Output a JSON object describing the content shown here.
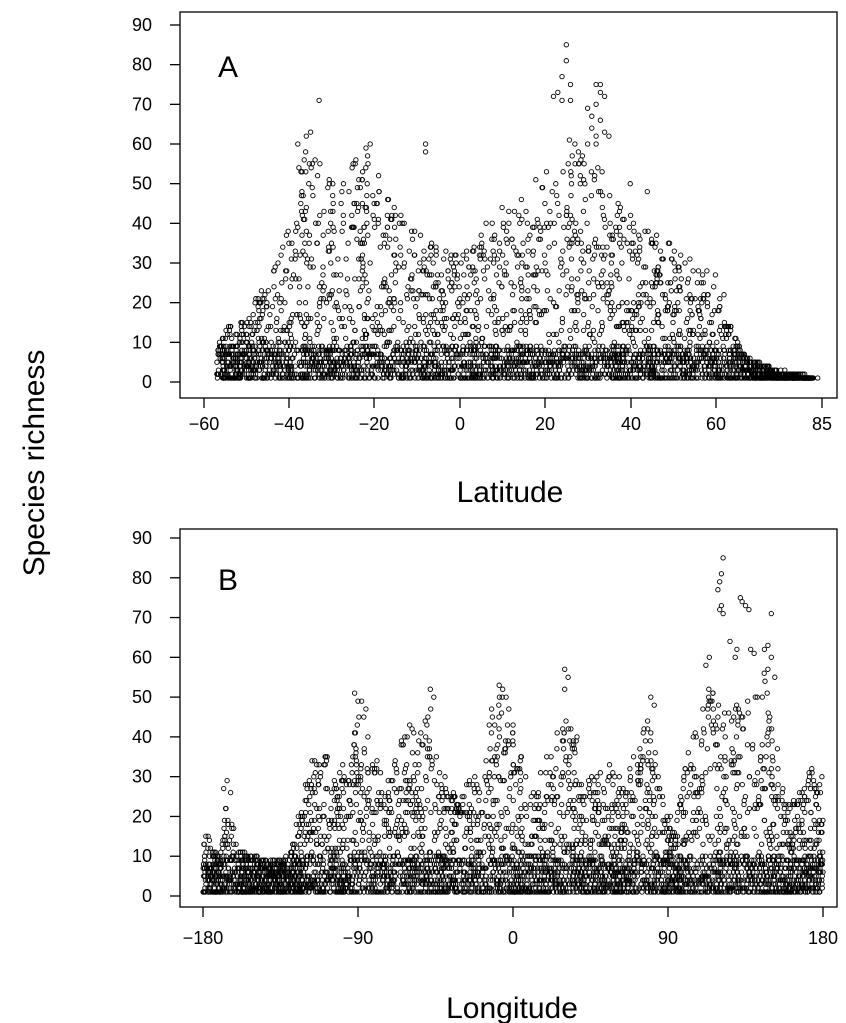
{
  "figure": {
    "shared_ylabel": "Species richness",
    "ylim": [
      0,
      90
    ],
    "yticks": [
      "0",
      "10",
      "20",
      "30",
      "40",
      "50",
      "60",
      "70",
      "80",
      "90"
    ]
  },
  "chart_data": [
    {
      "type": "scatter",
      "panel_label": "A",
      "xlabel": "Latitude",
      "ylabel": "Species richness",
      "xlim": [
        -60,
        85
      ],
      "ylim": [
        0,
        90
      ],
      "xticks": [
        -60,
        -40,
        -20,
        0,
        20,
        40,
        60,
        85
      ],
      "xtick_labels": [
        "−60",
        "−40",
        "−20",
        "0",
        "20",
        "40",
        "60",
        "85"
      ],
      "yticks": [
        0,
        10,
        20,
        30,
        40,
        50,
        60,
        70,
        80,
        90
      ],
      "grid": false,
      "envelope": [
        [
          -57,
          8
        ],
        [
          -55,
          14
        ],
        [
          -50,
          16
        ],
        [
          -48,
          22
        ],
        [
          -44,
          28
        ],
        [
          -42,
          35
        ],
        [
          -40,
          42
        ],
        [
          -38,
          54
        ],
        [
          -36,
          60
        ],
        [
          -34,
          58
        ],
        [
          -32,
          54
        ],
        [
          -30,
          50
        ],
        [
          -28,
          52
        ],
        [
          -26,
          56
        ],
        [
          -22,
          58
        ],
        [
          -20,
          56
        ],
        [
          -18,
          48
        ],
        [
          -15,
          44
        ],
        [
          -12,
          40
        ],
        [
          -10,
          38
        ],
        [
          -8,
          36
        ],
        [
          -4,
          34
        ],
        [
          0,
          32
        ],
        [
          4,
          34
        ],
        [
          6,
          42
        ],
        [
          8,
          46
        ],
        [
          12,
          44
        ],
        [
          16,
          48
        ],
        [
          18,
          52
        ],
        [
          22,
          54
        ],
        [
          26,
          62
        ],
        [
          28,
          58
        ],
        [
          30,
          56
        ],
        [
          34,
          54
        ],
        [
          36,
          48
        ],
        [
          40,
          44
        ],
        [
          44,
          38
        ],
        [
          48,
          36
        ],
        [
          52,
          32
        ],
        [
          56,
          28
        ],
        [
          60,
          26
        ],
        [
          62,
          18
        ],
        [
          64,
          14
        ],
        [
          66,
          8
        ],
        [
          70,
          5
        ],
        [
          74,
          3
        ],
        [
          80,
          2
        ],
        [
          83,
          1
        ]
      ],
      "points": [
        [
          -33,
          71
        ],
        [
          -35,
          63
        ],
        [
          -36,
          62
        ],
        [
          -38,
          60
        ],
        [
          -21,
          60
        ],
        [
          -22,
          59
        ],
        [
          -8,
          60
        ],
        [
          -8,
          58
        ],
        [
          25,
          85
        ],
        [
          25,
          81
        ],
        [
          24,
          77
        ],
        [
          26,
          75
        ],
        [
          23,
          73
        ],
        [
          22,
          72
        ],
        [
          24,
          71
        ],
        [
          26,
          71
        ],
        [
          32,
          75
        ],
        [
          33,
          75
        ],
        [
          33,
          73
        ],
        [
          34,
          72
        ],
        [
          32,
          70
        ],
        [
          30,
          69
        ],
        [
          31,
          67
        ],
        [
          33,
          66
        ],
        [
          31,
          64
        ],
        [
          34,
          63
        ],
        [
          32,
          62
        ],
        [
          35,
          62
        ],
        [
          30,
          60
        ],
        [
          32,
          60
        ],
        [
          28,
          55
        ],
        [
          40,
          50
        ],
        [
          44,
          48
        ],
        [
          54,
          31
        ],
        [
          58,
          28
        ],
        [
          60,
          27
        ],
        [
          62,
          22
        ],
        [
          61,
          19
        ],
        [
          78,
          1
        ],
        [
          81,
          1
        ],
        [
          84,
          1
        ]
      ]
    },
    {
      "type": "scatter",
      "panel_label": "B",
      "xlabel": "Longitude",
      "ylabel": "Species richness",
      "xlim": [
        -180,
        180
      ],
      "ylim": [
        0,
        90
      ],
      "xticks": [
        -180,
        -90,
        0,
        90,
        180
      ],
      "xtick_labels": [
        "−180",
        "−90",
        "0",
        "90",
        "180"
      ],
      "yticks": [
        0,
        10,
        20,
        30,
        40,
        50,
        60,
        70,
        80,
        90
      ],
      "grid": false,
      "envelope": [
        [
          -180,
          17
        ],
        [
          -176,
          14
        ],
        [
          -170,
          10
        ],
        [
          -166,
          26
        ],
        [
          -160,
          12
        ],
        [
          -150,
          10
        ],
        [
          -140,
          9
        ],
        [
          -130,
          10
        ],
        [
          -124,
          22
        ],
        [
          -118,
          32
        ],
        [
          -112,
          40
        ],
        [
          -108,
          38
        ],
        [
          -104,
          30
        ],
        [
          -98,
          34
        ],
        [
          -92,
          42
        ],
        [
          -88,
          50
        ],
        [
          -84,
          46
        ],
        [
          -78,
          34
        ],
        [
          -72,
          30
        ],
        [
          -66,
          38
        ],
        [
          -60,
          44
        ],
        [
          -54,
          42
        ],
        [
          -48,
          50
        ],
        [
          -42,
          32
        ],
        [
          -36,
          28
        ],
        [
          -30,
          26
        ],
        [
          -24,
          30
        ],
        [
          -20,
          32
        ],
        [
          -16,
          40
        ],
        [
          -12,
          48
        ],
        [
          -8,
          52
        ],
        [
          -4,
          50
        ],
        [
          0,
          44
        ],
        [
          4,
          36
        ],
        [
          8,
          32
        ],
        [
          14,
          30
        ],
        [
          20,
          36
        ],
        [
          26,
          42
        ],
        [
          30,
          52
        ],
        [
          34,
          46
        ],
        [
          40,
          36
        ],
        [
          46,
          30
        ],
        [
          52,
          32
        ],
        [
          58,
          34
        ],
        [
          64,
          28
        ],
        [
          70,
          36
        ],
        [
          76,
          44
        ],
        [
          80,
          48
        ],
        [
          84,
          34
        ],
        [
          88,
          24
        ],
        [
          94,
          18
        ],
        [
          100,
          34
        ],
        [
          106,
          44
        ],
        [
          110,
          56
        ],
        [
          114,
          54
        ],
        [
          118,
          50
        ],
        [
          122,
          46
        ],
        [
          128,
          48
        ],
        [
          134,
          52
        ],
        [
          138,
          50
        ],
        [
          142,
          52
        ],
        [
          146,
          58
        ],
        [
          150,
          44
        ],
        [
          154,
          36
        ],
        [
          158,
          24
        ],
        [
          164,
          24
        ],
        [
          168,
          28
        ],
        [
          172,
          32
        ],
        [
          176,
          34
        ],
        [
          180,
          34
        ]
      ],
      "points": [
        [
          -166,
          29
        ],
        [
          -168,
          27
        ],
        [
          -164,
          26
        ],
        [
          -92,
          51
        ],
        [
          -90,
          49
        ],
        [
          -48,
          52
        ],
        [
          -46,
          50
        ],
        [
          -8,
          53
        ],
        [
          -6,
          52
        ],
        [
          -4,
          50
        ],
        [
          30,
          57
        ],
        [
          32,
          55
        ],
        [
          30,
          52
        ],
        [
          80,
          50
        ],
        [
          82,
          48
        ],
        [
          122,
          85
        ],
        [
          121,
          81
        ],
        [
          120,
          79
        ],
        [
          119,
          77
        ],
        [
          121,
          73
        ],
        [
          120,
          72
        ],
        [
          122,
          71
        ],
        [
          132,
          75
        ],
        [
          133,
          74
        ],
        [
          135,
          73
        ],
        [
          137,
          72
        ],
        [
          140,
          61
        ],
        [
          138,
          62
        ],
        [
          129,
          60
        ],
        [
          130,
          62
        ],
        [
          126,
          64
        ],
        [
          150,
          71
        ],
        [
          148,
          63
        ],
        [
          146,
          62
        ],
        [
          150,
          60
        ],
        [
          148,
          57
        ],
        [
          152,
          55
        ],
        [
          114,
          60
        ],
        [
          112,
          58
        ]
      ]
    }
  ]
}
